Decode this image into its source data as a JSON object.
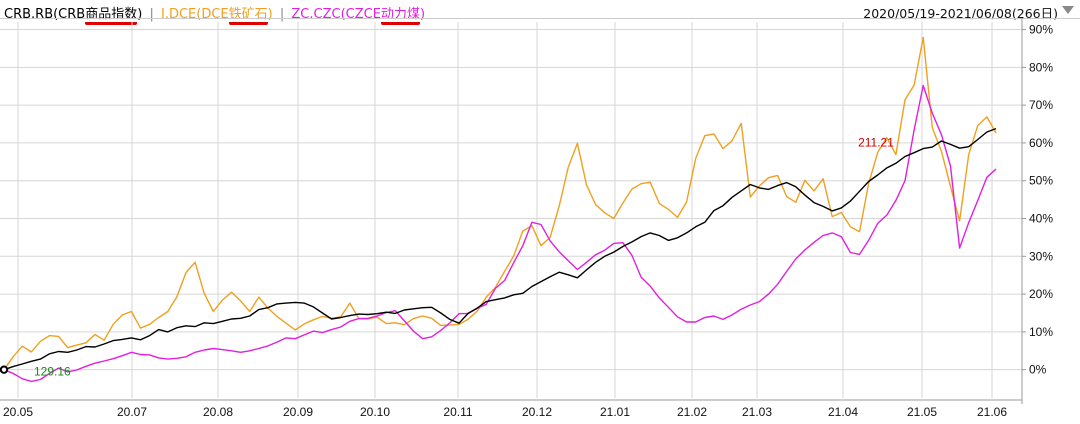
{
  "legend": {
    "crb_prefix": "CRB.RB(CRB",
    "crb_ul": "商品指数",
    "crb_suffix": ")",
    "sep1": "|",
    "i_prefix": "I.DCE(DCE",
    "i_ul": "铁矿石",
    "i_suffix": ")",
    "sep2": "|",
    "zc_prefix": "ZC.CZC(CZCE",
    "zc_ul": "动力煤",
    "zc_suffix": ")"
  },
  "date_range": "2020/05/19-2021/06/08(266日)",
  "colors": {
    "crb": "#000000",
    "iron_ore": "#f0a020",
    "thermal_coal": "#e020e0",
    "grid": "#d6d6d6",
    "axis_text": "#111111"
  },
  "chart_data": {
    "type": "line",
    "x_ticks": [
      "20.05",
      "20.07",
      "20.08",
      "20.09",
      "20.10",
      "20.11",
      "20.12",
      "21.01",
      "21.02",
      "21.03",
      "21.04",
      "21.05",
      "21.06"
    ],
    "y_ticks": [
      "90%",
      "80%",
      "70%",
      "60%",
      "50%",
      "40%",
      "30%",
      "20%",
      "10%",
      "0%"
    ],
    "ylim": [
      -7.5,
      92
    ],
    "y_unit": "%",
    "annotations": [
      {
        "text": "129.16",
        "series": "CRB.RB(CRB商品指数)",
        "color": "#1a8a1a",
        "at_index": 0
      },
      {
        "text": "211.21",
        "series": "CRB.RB(CRB商品指数)",
        "color": "#cc0000",
        "at_index": 100
      }
    ],
    "series": [
      {
        "name": "CRB.RB(CRB商品指数)",
        "color": "#000000",
        "values": [
          0,
          0.8,
          1.5,
          2.2,
          2.8,
          4.2,
          4.8,
          4.6,
          5.2,
          6.1,
          6.0,
          6.8,
          7.7,
          8.0,
          8.4,
          7.9,
          9.0,
          10.6,
          10.0,
          11.1,
          11.6,
          11.4,
          12.4,
          12.2,
          12.8,
          13.4,
          13.6,
          14.2,
          15.9,
          16.4,
          17.4,
          17.6,
          17.8,
          17.6,
          16.6,
          15.0,
          13.4,
          13.8,
          14.3,
          14.7,
          14.6,
          14.8,
          15.2,
          14.9,
          15.8,
          16.1,
          16.4,
          16.5,
          15.0,
          13.3,
          12.3,
          14.9,
          16.3,
          18.0,
          18.5,
          19.0,
          19.8,
          20.2,
          22.0,
          23.3,
          24.6,
          25.8,
          25.1,
          24.3,
          26.4,
          28.4,
          30.0,
          31.1,
          32.6,
          33.8,
          35.2,
          36.2,
          35.5,
          34.2,
          34.9,
          36.2,
          37.8,
          39.0,
          42.1,
          43.4,
          45.6,
          47.3,
          49.0,
          48.1,
          47.7,
          48.7,
          49.5,
          48.4,
          46.2,
          44.2,
          43.2,
          42.0,
          42.8,
          44.6,
          47.2,
          49.8,
          51.5,
          53.4,
          54.6,
          56.4,
          57.4,
          58.5,
          58.9,
          60.5,
          59.6,
          58.6,
          59.0,
          60.9,
          62.9,
          63.8
        ]
      },
      {
        "name": "I.DCE(DCE铁矿石)",
        "color": "#f0a020",
        "values": [
          0,
          3.4,
          6.2,
          4.7,
          7.5,
          9.0,
          8.8,
          5.8,
          6.5,
          7.1,
          9.3,
          7.8,
          12.0,
          14.5,
          15.4,
          11.0,
          12.0,
          13.8,
          15.4,
          19.3,
          25.7,
          28.4,
          20.2,
          15.4,
          18.4,
          20.5,
          18.2,
          15.4,
          19.2,
          16.3,
          14.1,
          12.3,
          10.5,
          12.1,
          13.2,
          14.1,
          13.6,
          14.0,
          17.6,
          13.5,
          13.4,
          13.9,
          12.2,
          12.4,
          11.9,
          13.5,
          14.2,
          13.6,
          11.7,
          11.8,
          12.0,
          13.3,
          15.5,
          19.2,
          21.8,
          26.0,
          30.1,
          36.7,
          38.1,
          32.8,
          35.0,
          43.3,
          53.6,
          59.9,
          48.9,
          43.7,
          41.5,
          40.0,
          44.1,
          47.8,
          49.2,
          49.6,
          44.0,
          42.4,
          40.3,
          44.4,
          55.9,
          61.9,
          62.4,
          58.5,
          60.6,
          65.2,
          45.7,
          48.6,
          50.8,
          51.4,
          45.8,
          44.3,
          50.1,
          47.3,
          50.5,
          40.5,
          41.6,
          37.8,
          36.5,
          49.2,
          57.5,
          61.4,
          56.9,
          71.4,
          75.3,
          87.9,
          64.0,
          57.8,
          48.5,
          39.4,
          56.9,
          64.6,
          66.9,
          62.6
        ]
      },
      {
        "name": "ZC.CZC(CZCE动力煤)",
        "color": "#e020e0",
        "values": [
          0,
          -1.0,
          -2.4,
          -3.1,
          -2.6,
          -1.0,
          0.4,
          -0.6,
          -0.1,
          0.9,
          1.7,
          2.3,
          2.9,
          3.7,
          4.6,
          4.0,
          3.9,
          3.1,
          2.8,
          3.0,
          3.4,
          4.6,
          5.2,
          5.6,
          5.3,
          5.0,
          4.6,
          5.0,
          5.6,
          6.3,
          7.3,
          8.4,
          8.2,
          9.2,
          10.2,
          9.8,
          10.6,
          11.3,
          12.8,
          13.5,
          13.6,
          14.2,
          15.1,
          15.6,
          12.9,
          10.2,
          8.2,
          8.7,
          10.4,
          12.4,
          14.8,
          14.9,
          16.2,
          17.3,
          21.5,
          23.6,
          28.3,
          32.8,
          39.0,
          38.4,
          34.1,
          31.2,
          28.8,
          26.5,
          28.4,
          30.4,
          31.6,
          33.4,
          33.6,
          30.2,
          24.5,
          22.1,
          19.0,
          16.5,
          14.0,
          12.6,
          12.6,
          13.8,
          14.2,
          13.3,
          14.5,
          16.0,
          17.1,
          18.0,
          20.0,
          22.6,
          26.0,
          29.3,
          31.7,
          33.7,
          35.5,
          36.2,
          35.2,
          31.0,
          30.5,
          34.2,
          38.7,
          40.9,
          44.8,
          50.0,
          63.4,
          75.2,
          67.9,
          62.2,
          53.9,
          32.2,
          38.9,
          44.8,
          50.9,
          53.1
        ]
      }
    ]
  }
}
